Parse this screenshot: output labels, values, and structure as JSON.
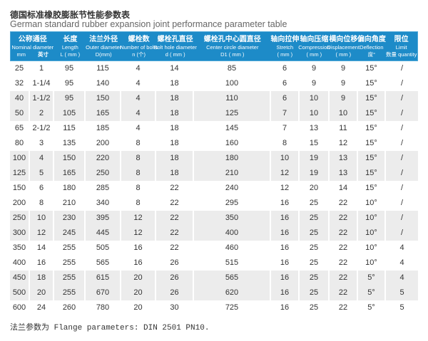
{
  "page": {
    "title_zh": "德国标准橡胶膨胀节性能参数表",
    "title_en": "German standard rubber expansion joint performance parameter table",
    "footer": "法兰参数为 Flange parameters: DIN 2501 PN10."
  },
  "colors": {
    "header_bg": "#1d8bc8",
    "alt_row": "#ececec"
  },
  "table": {
    "columns": [
      {
        "key": "nominal-diameter",
        "zh": "公称通径",
        "en": "Nominal diameter",
        "unit_pair": [
          "mm",
          "英寸"
        ]
      },
      {
        "key": "length",
        "zh": "长度",
        "en": "Length",
        "unit": "L ( mm )"
      },
      {
        "key": "outer-diameter",
        "zh": "法兰外径",
        "en": "Outer diameter",
        "unit": "D(mm)"
      },
      {
        "key": "number-of-bolts",
        "zh": "螺栓数",
        "en": "Number of bolts",
        "unit": "n (个)"
      },
      {
        "key": "bolt-hole-diameter",
        "zh": "螺栓孔直径",
        "en": "Bolt hole diameter",
        "unit": "d ( mm )"
      },
      {
        "key": "center-circle-diameter",
        "zh": "螺栓孔中心圆直径",
        "en": "Center circle diameter",
        "unit": "D1 ( mm )"
      },
      {
        "key": "stretch",
        "zh": "轴向拉伸",
        "en": "Stretch",
        "unit": "( mm )"
      },
      {
        "key": "compression",
        "zh": "轴向压缩",
        "en": "Compression",
        "unit": "( mm )"
      },
      {
        "key": "displacement",
        "zh": "横向位移",
        "en": "Displacement",
        "unit": "( mm )"
      },
      {
        "key": "deflection",
        "zh": "偏向角度",
        "en": "Deflection",
        "unit": "度°"
      },
      {
        "key": "limit",
        "zh": "限位",
        "en": "Limit",
        "unit": "数量 quantity"
      }
    ],
    "rows": [
      [
        "25",
        "1",
        "95",
        "115",
        "4",
        "14",
        "85",
        "6",
        "9",
        "9",
        "15°",
        "/"
      ],
      [
        "32",
        "1-1/4",
        "95",
        "140",
        "4",
        "18",
        "100",
        "6",
        "9",
        "9",
        "15°",
        "/"
      ],
      [
        "40",
        "1-1/2",
        "95",
        "150",
        "4",
        "18",
        "110",
        "6",
        "10",
        "9",
        "15°",
        "/"
      ],
      [
        "50",
        "2",
        "105",
        "165",
        "4",
        "18",
        "125",
        "7",
        "10",
        "10",
        "15°",
        "/"
      ],
      [
        "65",
        "2-1/2",
        "115",
        "185",
        "4",
        "18",
        "145",
        "7",
        "13",
        "11",
        "15°",
        "/"
      ],
      [
        "80",
        "3",
        "135",
        "200",
        "8",
        "18",
        "160",
        "8",
        "15",
        "12",
        "15°",
        "/"
      ],
      [
        "100",
        "4",
        "150",
        "220",
        "8",
        "18",
        "180",
        "10",
        "19",
        "13",
        "15°",
        "/"
      ],
      [
        "125",
        "5",
        "165",
        "250",
        "8",
        "18",
        "210",
        "12",
        "19",
        "13",
        "15°",
        "/"
      ],
      [
        "150",
        "6",
        "180",
        "285",
        "8",
        "22",
        "240",
        "12",
        "20",
        "14",
        "15°",
        "/"
      ],
      [
        "200",
        "8",
        "210",
        "340",
        "8",
        "22",
        "295",
        "16",
        "25",
        "22",
        "10°",
        "/"
      ],
      [
        "250",
        "10",
        "230",
        "395",
        "12",
        "22",
        "350",
        "16",
        "25",
        "22",
        "10°",
        "/"
      ],
      [
        "300",
        "12",
        "245",
        "445",
        "12",
        "22",
        "400",
        "16",
        "25",
        "22",
        "10°",
        "/"
      ],
      [
        "350",
        "14",
        "255",
        "505",
        "16",
        "22",
        "460",
        "16",
        "25",
        "22",
        "10°",
        "4"
      ],
      [
        "400",
        "16",
        "255",
        "565",
        "16",
        "26",
        "515",
        "16",
        "25",
        "22",
        "10°",
        "4"
      ],
      [
        "450",
        "18",
        "255",
        "615",
        "20",
        "26",
        "565",
        "16",
        "25",
        "22",
        "5°",
        "4"
      ],
      [
        "500",
        "20",
        "255",
        "670",
        "20",
        "26",
        "620",
        "16",
        "25",
        "22",
        "5°",
        "5"
      ],
      [
        "600",
        "24",
        "260",
        "780",
        "20",
        "30",
        "725",
        "16",
        "25",
        "22",
        "5°",
        "5"
      ]
    ]
  }
}
